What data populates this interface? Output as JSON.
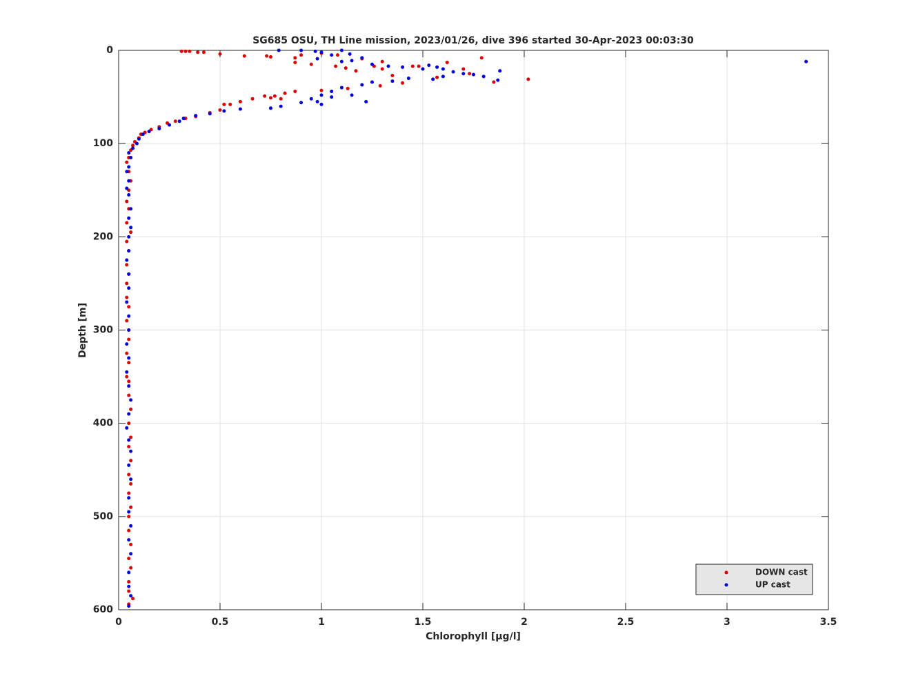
{
  "chart_data": {
    "type": "scatter",
    "title": "SG685 OSU, TH Line mission, 2023/01/26, dive 396 started 30-Apr-2023 00:03:30",
    "x_label": "Chlorophyll [μg/l]",
    "y_label": "Depth [m]",
    "xlim": [
      0,
      3.5
    ],
    "xticks": [
      0,
      0.5,
      1,
      1.5,
      2,
      2.5,
      3,
      3.5
    ],
    "ylim": [
      0,
      600
    ],
    "yticks": [
      0,
      100,
      200,
      300,
      400,
      500,
      600
    ],
    "y_reversed": true,
    "grid": true,
    "legend": "lower right",
    "series": [
      {
        "name": "DOWN cast",
        "color": "#dd0000",
        "x": [
          0.31,
          0.33,
          0.35,
          0.39,
          0.42,
          0.5,
          0.62,
          0.73,
          0.75,
          0.87,
          0.9,
          1.0,
          1.08,
          1.2,
          1.3,
          1.45,
          1.48,
          1.62,
          1.79,
          1.7,
          1.73,
          1.85,
          2.02,
          1.57,
          1.35,
          1.29,
          1.4,
          1.26,
          1.12,
          1.17,
          1.07,
          0.87,
          0.95,
          1.3,
          1.13,
          1.0,
          0.87,
          0.82,
          0.77,
          0.72,
          0.75,
          0.8,
          0.66,
          0.6,
          0.55,
          0.52,
          0.5,
          0.45,
          0.38,
          0.33,
          0.28,
          0.24,
          0.2,
          0.16,
          0.13,
          0.11,
          0.1,
          0.08,
          0.07,
          0.06,
          0.05,
          0.04,
          0.05,
          0.06,
          0.05,
          0.04,
          0.05,
          0.04,
          0.06,
          0.04,
          0.05,
          0.04,
          0.05,
          0.04,
          0.04,
          0.05,
          0.04,
          0.05,
          0.05,
          0.04,
          0.05,
          0.04,
          0.05,
          0.05,
          0.06,
          0.05,
          0.06,
          0.05,
          0.06,
          0.05,
          0.06,
          0.05,
          0.06,
          0.05,
          0.05,
          0.06,
          0.05,
          0.06,
          0.05,
          0.05,
          0.07,
          0.05
        ],
        "values": [
          1,
          1,
          1,
          2,
          2,
          4,
          6,
          6,
          7,
          8,
          5,
          3,
          5,
          9,
          12,
          17,
          17,
          13,
          8,
          20,
          25,
          34,
          31,
          29,
          27,
          38,
          35,
          17,
          19,
          22,
          17,
          13,
          15,
          20,
          41,
          43,
          44,
          46,
          49,
          49,
          51,
          52,
          52,
          55,
          58,
          58,
          64,
          67,
          71,
          73,
          76,
          78,
          82,
          85,
          88,
          90,
          94,
          98,
          102,
          107,
          115,
          120,
          130,
          140,
          150,
          162,
          170,
          185,
          195,
          205,
          215,
          230,
          240,
          250,
          265,
          275,
          290,
          300,
          310,
          325,
          335,
          350,
          355,
          370,
          385,
          400,
          415,
          425,
          440,
          455,
          465,
          475,
          490,
          500,
          515,
          530,
          545,
          555,
          570,
          580,
          588,
          594
        ]
      },
      {
        "name": "UP cast",
        "color": "#0000dd",
        "x": [
          0.79,
          0.9,
          0.97,
          1.0,
          1.1,
          1.14,
          1.2,
          1.05,
          0.98,
          1.1,
          1.15,
          1.25,
          1.33,
          1.4,
          1.5,
          1.53,
          1.57,
          1.6,
          1.65,
          1.7,
          1.75,
          1.88,
          1.87,
          1.8,
          1.6,
          1.55,
          1.43,
          1.35,
          1.25,
          1.2,
          3.39,
          1.1,
          1.05,
          1.0,
          0.95,
          0.9,
          0.98,
          1.05,
          1.15,
          1.22,
          1.0,
          0.8,
          0.75,
          0.6,
          0.52,
          0.45,
          0.38,
          0.32,
          0.3,
          0.25,
          0.2,
          0.15,
          0.12,
          0.1,
          0.09,
          0.07,
          0.05,
          0.06,
          0.05,
          0.04,
          0.05,
          0.04,
          0.05,
          0.06,
          0.05,
          0.06,
          0.05,
          0.05,
          0.04,
          0.05,
          0.05,
          0.04,
          0.05,
          0.05,
          0.04,
          0.05,
          0.04,
          0.05,
          0.06,
          0.05,
          0.04,
          0.05,
          0.06,
          0.05,
          0.06,
          0.05,
          0.05,
          0.06,
          0.05,
          0.06,
          0.05,
          0.05,
          0.06,
          0.05
        ],
        "values": [
          0,
          0,
          1,
          2,
          0,
          4,
          8,
          5,
          9,
          12,
          11,
          15,
          17,
          18,
          20,
          16,
          18,
          20,
          23,
          25,
          26,
          22,
          32,
          28,
          28,
          31,
          30,
          33,
          34,
          37,
          12,
          40,
          44,
          48,
          52,
          56,
          55,
          50,
          48,
          55,
          58,
          60,
          62,
          63,
          65,
          68,
          70,
          73,
          76,
          80,
          84,
          87,
          90,
          95,
          100,
          105,
          110,
          115,
          125,
          130,
          140,
          148,
          155,
          170,
          180,
          190,
          200,
          215,
          225,
          240,
          255,
          270,
          285,
          300,
          315,
          330,
          345,
          360,
          375,
          390,
          405,
          418,
          430,
          445,
          460,
          480,
          495,
          510,
          525,
          540,
          560,
          575,
          585,
          596
        ]
      }
    ]
  }
}
